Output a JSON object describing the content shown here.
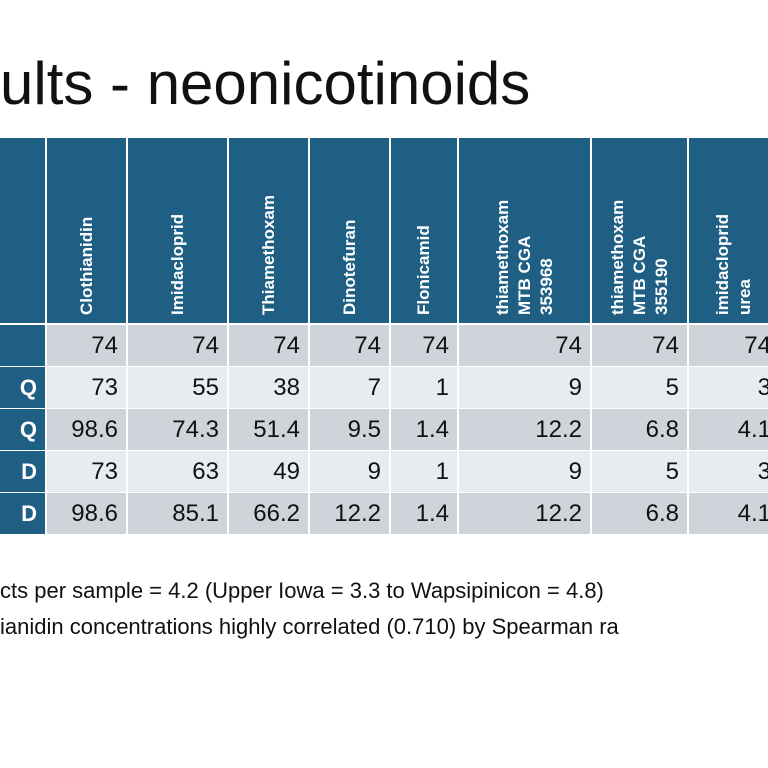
{
  "slide": {
    "title": "ults - neonicotinoids"
  },
  "table": {
    "columns": [
      [
        "Clothianidin"
      ],
      [
        "Imidacloprid"
      ],
      [
        "Thiamethoxam"
      ],
      [
        "Dinotefuran"
      ],
      [
        "Flonicamid"
      ],
      [
        "thiamethoxam",
        "MTB CGA",
        "353968"
      ],
      [
        "thiamethoxam",
        "MTB CGA",
        "355190"
      ],
      [
        "imidacloprid",
        "urea"
      ]
    ],
    "row_labels": [
      "",
      "Q",
      "Q",
      "D",
      "D"
    ],
    "rows": [
      [
        "74",
        "74",
        "74",
        "74",
        "74",
        "74",
        "74",
        "74"
      ],
      [
        "73",
        "55",
        "38",
        "7",
        "1",
        "9",
        "5",
        "3"
      ],
      [
        "98.6",
        "74.3",
        "51.4",
        "9.5",
        "1.4",
        "12.2",
        "6.8",
        "4.1"
      ],
      [
        "73",
        "63",
        "49",
        "9",
        "1",
        "9",
        "5",
        "3"
      ],
      [
        "98.6",
        "85.1",
        "66.2",
        "12.2",
        "1.4",
        "12.2",
        "6.8",
        "4.1"
      ]
    ]
  },
  "notes": [
    "cts per sample = 4.2 (Upper Iowa = 3.3 to Wapsipinicon = 4.8)",
    "ianidin concentrations highly correlated (0.710) by Spearman ra"
  ]
}
